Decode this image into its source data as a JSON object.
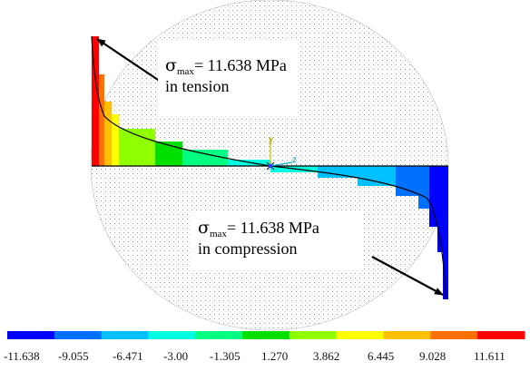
{
  "callout_top": {
    "symbol": "σ",
    "subscript": "max",
    "value": "= 11.638 MPa",
    "description": "in tension"
  },
  "callout_bottom": {
    "symbol": "σ",
    "subscript": "max",
    "value": "= 11.638 MPa",
    "description": "in compression"
  },
  "axis_labels": {
    "y": "y",
    "z": "z"
  },
  "legend": {
    "colors": [
      "#0000ff",
      "#0070ff",
      "#00c0ff",
      "#00ffe0",
      "#00ff80",
      "#00e000",
      "#90ff00",
      "#ffff00",
      "#ffc000",
      "#ff7000",
      "#ff0000"
    ],
    "tick_labels": [
      "-11.638",
      "-9.055",
      "-6.471",
      "-3.00",
      "-1.305",
      "1.270",
      "3.862",
      "6.445",
      "9.028",
      "11.611"
    ]
  }
}
